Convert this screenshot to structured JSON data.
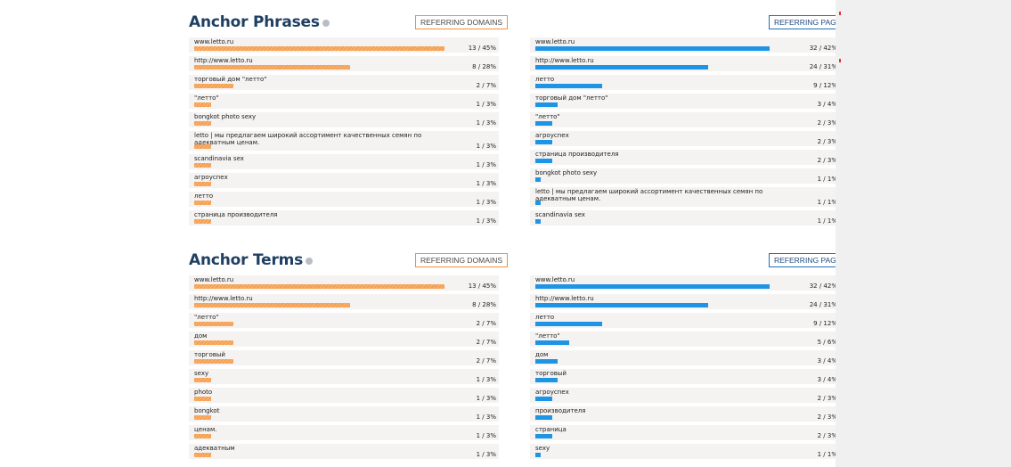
{
  "sections": [
    {
      "title": "Anchor Phrases",
      "domains_button": "REFERRING DOMAINS",
      "pages_button": "REFERRING PAGES",
      "domains": [
        {
          "label": "www.letto.ru",
          "value": "13 / 45%",
          "pct": 45
        },
        {
          "label": "http://www.letto.ru",
          "value": "8 / 28%",
          "pct": 28
        },
        {
          "label": "торговый дом \"летто\"",
          "value": "2 / 7%",
          "pct": 7
        },
        {
          "label": "\"летто\"",
          "value": "1 / 3%",
          "pct": 3
        },
        {
          "label": "bongkot photo sexy",
          "value": "1 / 3%",
          "pct": 3
        },
        {
          "label": "letto | мы предлагаем широкий ассортимент качественных семян по адекватным ценам.",
          "value": "1 / 3%",
          "pct": 3
        },
        {
          "label": "scandinavia sex",
          "value": "1 / 3%",
          "pct": 3
        },
        {
          "label": "агроуспех",
          "value": "1 / 3%",
          "pct": 3
        },
        {
          "label": "летто",
          "value": "1 / 3%",
          "pct": 3
        },
        {
          "label": "страница производителя",
          "value": "1 / 3%",
          "pct": 3
        }
      ],
      "pages": [
        {
          "label": "www.letto.ru",
          "value": "32 / 42%",
          "pct": 42
        },
        {
          "label": "http://www.letto.ru",
          "value": "24 / 31%",
          "pct": 31
        },
        {
          "label": "летто",
          "value": "9 / 12%",
          "pct": 12
        },
        {
          "label": "торговый дом \"летто\"",
          "value": "3 / 4%",
          "pct": 4
        },
        {
          "label": "\"летто\"",
          "value": "2 / 3%",
          "pct": 3
        },
        {
          "label": "агроуспех",
          "value": "2 / 3%",
          "pct": 3
        },
        {
          "label": "страница производителя",
          "value": "2 / 3%",
          "pct": 3
        },
        {
          "label": "bongkot photo sexy",
          "value": "1 / 1%",
          "pct": 1
        },
        {
          "label": "letto | мы предлагаем широкий ассортимент качественных семян по адекватным ценам.",
          "value": "1 / 1%",
          "pct": 1
        },
        {
          "label": "scandinavia sex",
          "value": "1 / 1%",
          "pct": 1
        }
      ]
    },
    {
      "title": "Anchor Terms",
      "domains_button": "REFERRING DOMAINS",
      "pages_button": "REFERRING PAGES",
      "domains": [
        {
          "label": "www.letto.ru",
          "value": "13 / 45%",
          "pct": 45
        },
        {
          "label": "http://www.letto.ru",
          "value": "8 / 28%",
          "pct": 28
        },
        {
          "label": "\"летто\"",
          "value": "2 / 7%",
          "pct": 7
        },
        {
          "label": "дом",
          "value": "2 / 7%",
          "pct": 7
        },
        {
          "label": "торговый",
          "value": "2 / 7%",
          "pct": 7
        },
        {
          "label": "sexy",
          "value": "1 / 3%",
          "pct": 3
        },
        {
          "label": "photo",
          "value": "1 / 3%",
          "pct": 3
        },
        {
          "label": "bongkot",
          "value": "1 / 3%",
          "pct": 3
        },
        {
          "label": "ценам.",
          "value": "1 / 3%",
          "pct": 3
        },
        {
          "label": "адекватным",
          "value": "1 / 3%",
          "pct": 3
        }
      ],
      "pages": [
        {
          "label": "www.letto.ru",
          "value": "32 / 42%",
          "pct": 42
        },
        {
          "label": "http://www.letto.ru",
          "value": "24 / 31%",
          "pct": 31
        },
        {
          "label": "летто",
          "value": "9 / 12%",
          "pct": 12
        },
        {
          "label": "\"летто\"",
          "value": "5 / 6%",
          "pct": 6
        },
        {
          "label": "дом",
          "value": "3 / 4%",
          "pct": 4
        },
        {
          "label": "торговый",
          "value": "3 / 4%",
          "pct": 4
        },
        {
          "label": "агроуспех",
          "value": "2 / 3%",
          "pct": 3
        },
        {
          "label": "производителя",
          "value": "2 / 3%",
          "pct": 3
        },
        {
          "label": "страница",
          "value": "2 / 3%",
          "pct": 3
        },
        {
          "label": "sexy",
          "value": "1 / 1%",
          "pct": 1
        }
      ]
    }
  ]
}
